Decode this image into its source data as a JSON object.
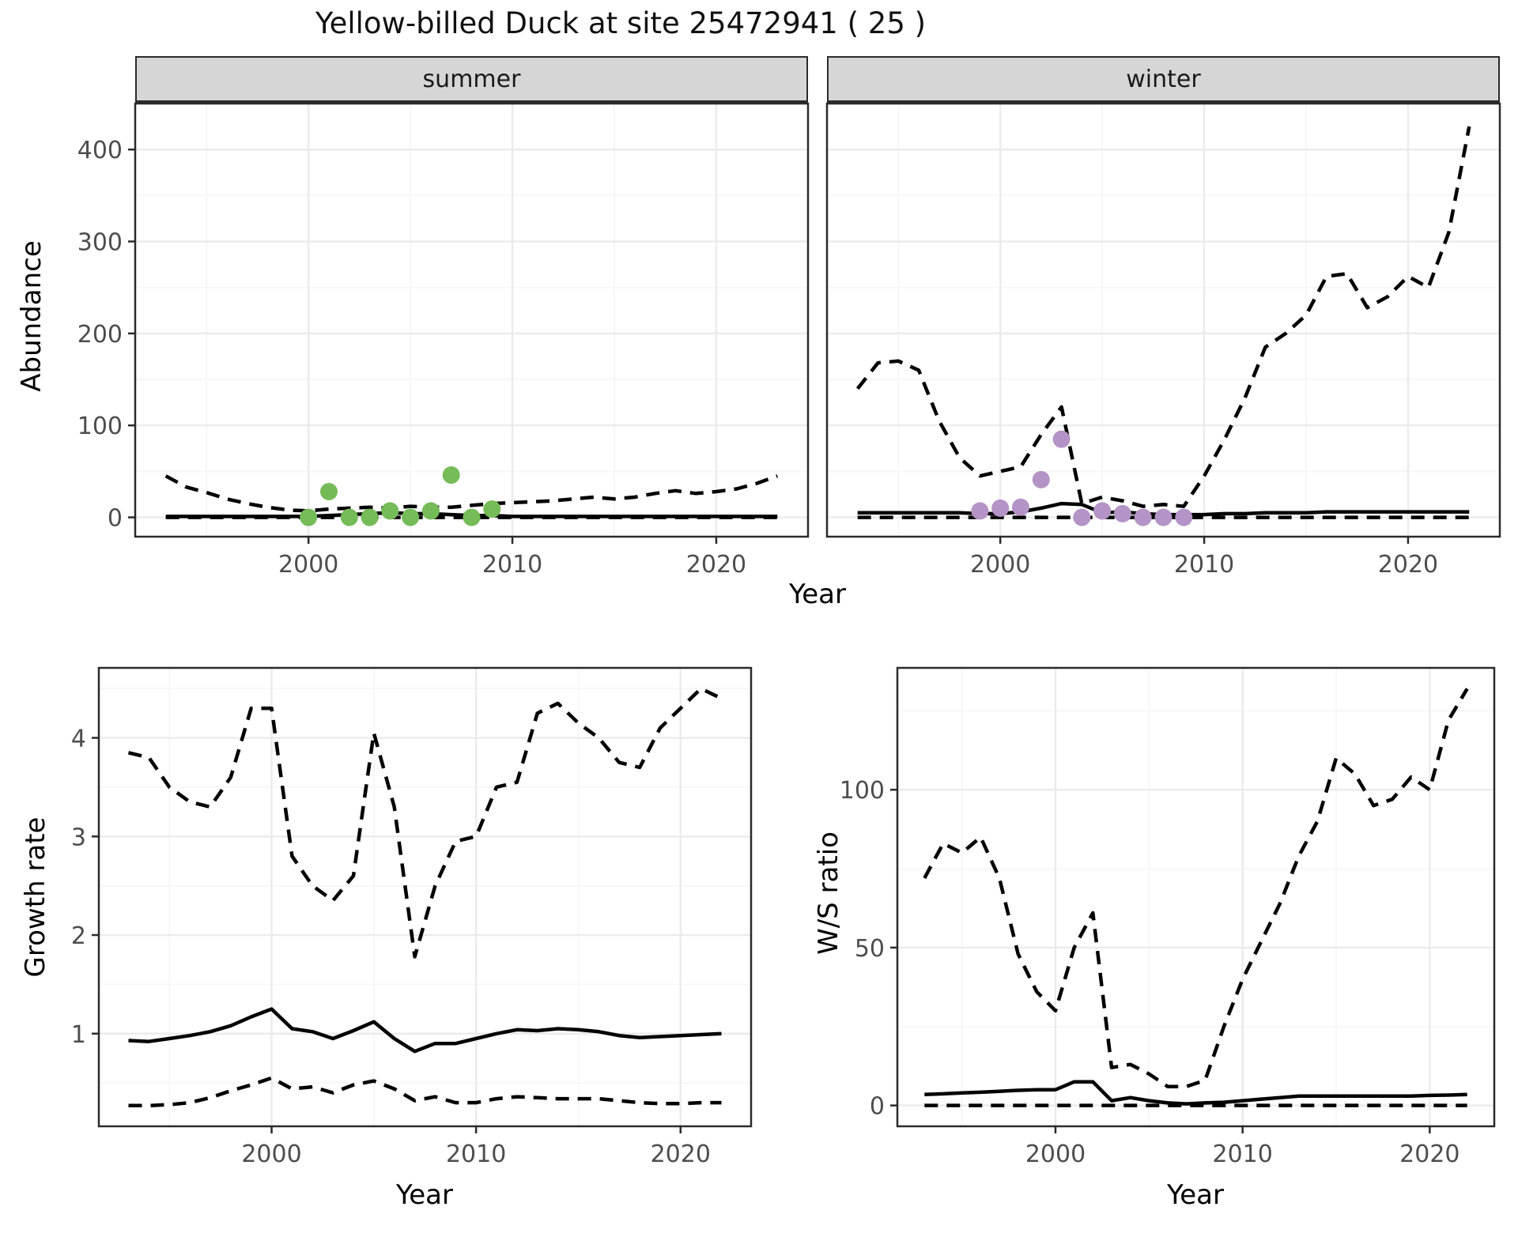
{
  "labels": {
    "title": "Yellow-billed Duck at site 25472941 ( 25 )",
    "xlab": "Year",
    "abundance_ylab": "Abundance",
    "growth_ylab": "Growth rate",
    "ws_ylab": "W/S ratio",
    "facet_summer": "summer",
    "facet_winter": "winter"
  },
  "colors": {
    "summer_point": "#75BB58",
    "winter_point": "#B493C6",
    "line": "#000000",
    "strip_bg": "#D6D6D6",
    "panel_border": "#2B2B2B",
    "panel_bg": "#FFFFFF",
    "grid_major": "#EBEBEB",
    "grid_minor": "#F5F5F5",
    "tick_text": "#4D4D4D",
    "background": "#FFFFFF"
  },
  "chart_data": [
    {
      "id": "abundance",
      "type": "line",
      "title": "Yellow-billed Duck at site 25472941 ( 25 )",
      "xlabel": "Year",
      "ylabel": "Abundance",
      "legend": "none",
      "grid": "on",
      "xticks": [
        2000,
        2010,
        2020
      ],
      "yticks": [
        0,
        100,
        200,
        300,
        400
      ],
      "xlim": [
        1991.5,
        2024.5
      ],
      "ylim": [
        -21,
        450
      ],
      "years": [
        1993,
        1994,
        1995,
        1996,
        1997,
        1998,
        1999,
        2000,
        2001,
        2002,
        2003,
        2004,
        2005,
        2006,
        2007,
        2008,
        2009,
        2010,
        2011,
        2012,
        2013,
        2014,
        2015,
        2016,
        2017,
        2018,
        2019,
        2020,
        2021,
        2022,
        2023
      ],
      "facets": [
        {
          "label": "summer",
          "point_color": "#75BB58",
          "observations": {
            "years": [
              2000,
              2001,
              2002,
              2003,
              2004,
              2005,
              2006,
              2007,
              2008,
              2009
            ],
            "values": [
              0,
              28,
              0,
              0,
              7,
              0,
              7,
              46,
              0,
              9
            ]
          },
          "series": [
            {
              "name": "mean",
              "style": "solid",
              "values": [
                1,
                1,
                1,
                1,
                1,
                1,
                1,
                1,
                2,
                3,
                4,
                5,
                4,
                4,
                3,
                2,
                2,
                1,
                1,
                1,
                1,
                1,
                1,
                1,
                1,
                1,
                1,
                1,
                1,
                1,
                1
              ]
            },
            {
              "name": "upper_95ci",
              "style": "dashed",
              "values": [
                45,
                33,
                27,
                20,
                15,
                11,
                8,
                7,
                9,
                10,
                11,
                10,
                12,
                11,
                11,
                13,
                15,
                16,
                17,
                18,
                20,
                22,
                20,
                22,
                26,
                29,
                26,
                28,
                31,
                37,
                45
              ]
            },
            {
              "name": "lower_95ci",
              "style": "dashed",
              "values": [
                0,
                0,
                0,
                0,
                0,
                0,
                0,
                0,
                0,
                0,
                0,
                0,
                0,
                0,
                0,
                0,
                0,
                0,
                0,
                0,
                0,
                0,
                0,
                0,
                0,
                0,
                0,
                0,
                0,
                0,
                0
              ]
            }
          ]
        },
        {
          "label": "winter",
          "point_color": "#B493C6",
          "observations": {
            "years": [
              1999,
              2000,
              2001,
              2002,
              2003,
              2004,
              2005,
              2006,
              2007,
              2008,
              2009
            ],
            "values": [
              7,
              10,
              11,
              41,
              85,
              0,
              7,
              4,
              0,
              0,
              0
            ]
          },
          "series": [
            {
              "name": "mean",
              "style": "solid",
              "values": [
                5,
                5,
                5,
                5,
                5,
                5,
                4,
                4,
                6,
                10,
                15,
                14,
                5,
                6,
                4,
                3,
                3,
                3,
                4,
                4,
                5,
                5,
                5,
                6,
                6,
                6,
                6,
                6,
                6,
                6,
                6
              ]
            },
            {
              "name": "upper_95ci",
              "style": "dashed",
              "values": [
                140,
                168,
                170,
                160,
                105,
                65,
                45,
                50,
                55,
                90,
                120,
                15,
                22,
                18,
                12,
                14,
                12,
                45,
                85,
                130,
                185,
                200,
                220,
                262,
                265,
                228,
                240,
                262,
                250,
                310,
                425
              ]
            },
            {
              "name": "lower_95ci",
              "style": "dashed",
              "values": [
                0,
                0,
                0,
                0,
                0,
                0,
                0,
                0,
                0,
                0,
                0,
                0,
                0,
                0,
                0,
                0,
                0,
                0,
                0,
                0,
                0,
                0,
                0,
                0,
                0,
                0,
                0,
                0,
                0,
                0,
                0
              ]
            }
          ]
        }
      ]
    },
    {
      "id": "growth_rate",
      "type": "line",
      "xlabel": "Year",
      "ylabel": "Growth rate",
      "grid": "on",
      "xticks": [
        2000,
        2010,
        2020
      ],
      "yticks": [
        1,
        2,
        3,
        4
      ],
      "xlim": [
        1991.55,
        2023.45
      ],
      "ylim": [
        0.06,
        4.71
      ],
      "years": [
        1993,
        1994,
        1995,
        1996,
        1997,
        1998,
        1999,
        2000,
        2001,
        2002,
        2003,
        2004,
        2005,
        2006,
        2007,
        2008,
        2009,
        2010,
        2011,
        2012,
        2013,
        2014,
        2015,
        2016,
        2017,
        2018,
        2019,
        2020,
        2021,
        2022
      ],
      "series": [
        {
          "name": "mean",
          "style": "solid",
          "values": [
            0.93,
            0.92,
            0.95,
            0.98,
            1.02,
            1.08,
            1.17,
            1.25,
            1.05,
            1.02,
            0.95,
            1.03,
            1.12,
            0.95,
            0.82,
            0.9,
            0.9,
            0.95,
            1.0,
            1.04,
            1.03,
            1.05,
            1.04,
            1.02,
            0.98,
            0.96,
            0.97,
            0.98,
            0.99,
            1.0
          ]
        },
        {
          "name": "upper_95ci",
          "style": "dashed",
          "values": [
            3.85,
            3.8,
            3.5,
            3.35,
            3.3,
            3.6,
            4.3,
            4.3,
            2.8,
            2.5,
            2.35,
            2.6,
            4.05,
            3.3,
            1.78,
            2.5,
            2.95,
            3.0,
            3.5,
            3.55,
            4.25,
            4.35,
            4.15,
            4.0,
            3.75,
            3.7,
            4.1,
            4.3,
            4.5,
            4.4
          ]
        },
        {
          "name": "lower_95ci",
          "style": "dashed",
          "values": [
            0.27,
            0.27,
            0.28,
            0.3,
            0.35,
            0.42,
            0.48,
            0.55,
            0.44,
            0.46,
            0.4,
            0.48,
            0.52,
            0.44,
            0.32,
            0.36,
            0.3,
            0.3,
            0.34,
            0.36,
            0.35,
            0.34,
            0.34,
            0.34,
            0.32,
            0.3,
            0.29,
            0.29,
            0.3,
            0.3
          ]
        }
      ]
    },
    {
      "id": "ws_ratio",
      "type": "line",
      "xlabel": "Year",
      "ylabel": "W/S ratio",
      "grid": "on",
      "xticks": [
        2000,
        2010,
        2020
      ],
      "yticks": [
        0,
        50,
        100
      ],
      "xlim": [
        1991.55,
        2023.45
      ],
      "ylim": [
        -6.6,
        138.6
      ],
      "years": [
        1993,
        1994,
        1995,
        1996,
        1997,
        1998,
        1999,
        2000,
        2001,
        2002,
        2003,
        2004,
        2005,
        2006,
        2007,
        2008,
        2009,
        2010,
        2011,
        2012,
        2013,
        2014,
        2015,
        2016,
        2017,
        2018,
        2019,
        2020,
        2021,
        2022
      ],
      "series": [
        {
          "name": "mean",
          "style": "solid",
          "values": [
            3.5,
            3.7,
            4.0,
            4.2,
            4.5,
            4.8,
            5.0,
            5.0,
            7.5,
            7.5,
            1.5,
            2.5,
            1.5,
            0.8,
            0.5,
            0.8,
            1.0,
            1.5,
            2.0,
            2.5,
            3.0,
            3.0,
            3.0,
            3.0,
            3.0,
            3.0,
            3.0,
            3.2,
            3.3,
            3.5
          ]
        },
        {
          "name": "upper_95ci",
          "style": "dashed",
          "values": [
            72,
            83,
            80,
            85,
            72,
            48,
            36,
            30,
            50,
            61,
            12,
            13,
            10,
            6,
            6,
            8,
            25,
            40,
            52,
            64,
            79,
            90,
            110,
            105,
            95,
            97,
            104,
            100,
            122,
            132
          ]
        },
        {
          "name": "lower_95ci",
          "style": "dashed",
          "values": [
            0,
            0,
            0,
            0,
            0,
            0,
            0,
            0,
            0,
            0,
            0,
            0,
            0,
            0,
            0,
            0,
            0,
            0,
            0,
            0,
            0,
            0,
            0,
            0,
            0,
            0,
            0,
            0,
            0,
            0
          ]
        }
      ]
    }
  ]
}
